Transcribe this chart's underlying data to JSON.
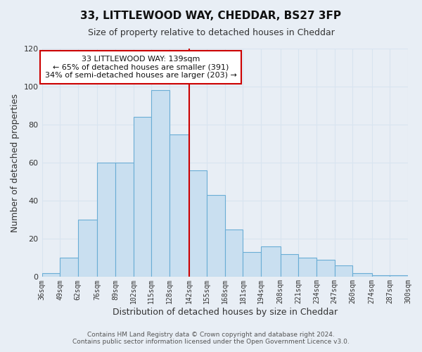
{
  "title": "33, LITTLEWOOD WAY, CHEDDAR, BS27 3FP",
  "subtitle": "Size of property relative to detached houses in Cheddar",
  "xlabel": "Distribution of detached houses by size in Cheddar",
  "ylabel": "Number of detached properties",
  "bar_labels": [
    "36sqm",
    "49sqm",
    "62sqm",
    "76sqm",
    "89sqm",
    "102sqm",
    "115sqm",
    "128sqm",
    "142sqm",
    "155sqm",
    "168sqm",
    "181sqm",
    "194sqm",
    "208sqm",
    "221sqm",
    "234sqm",
    "247sqm",
    "260sqm",
    "274sqm",
    "287sqm",
    "300sqm"
  ],
  "bar_values": [
    2,
    10,
    30,
    60,
    60,
    84,
    98,
    75,
    56,
    43,
    25,
    13,
    16,
    12,
    10,
    9,
    6,
    2,
    1,
    1,
    1
  ],
  "bar_color": "#c9dff0",
  "bar_edge_color": "#6aadd5",
  "vline_x": 142,
  "bin_edges": [
    36,
    49,
    62,
    76,
    89,
    102,
    115,
    128,
    142,
    155,
    168,
    181,
    194,
    208,
    221,
    234,
    247,
    260,
    274,
    287,
    300
  ],
  "vline_color": "#cc0000",
  "annotation_title": "33 LITTLEWOOD WAY: 139sqm",
  "annotation_line1": "← 65% of detached houses are smaller (391)",
  "annotation_line2": "34% of semi-detached houses are larger (203) →",
  "annotation_box_color": "#ffffff",
  "annotation_border_color": "#cc0000",
  "ylim": [
    0,
    120
  ],
  "xlim": [
    36,
    300
  ],
  "grid_color": "#d8e4f0",
  "background_color": "#e8eef5",
  "footer1": "Contains HM Land Registry data © Crown copyright and database right 2024.",
  "footer2": "Contains public sector information licensed under the Open Government Licence v3.0."
}
